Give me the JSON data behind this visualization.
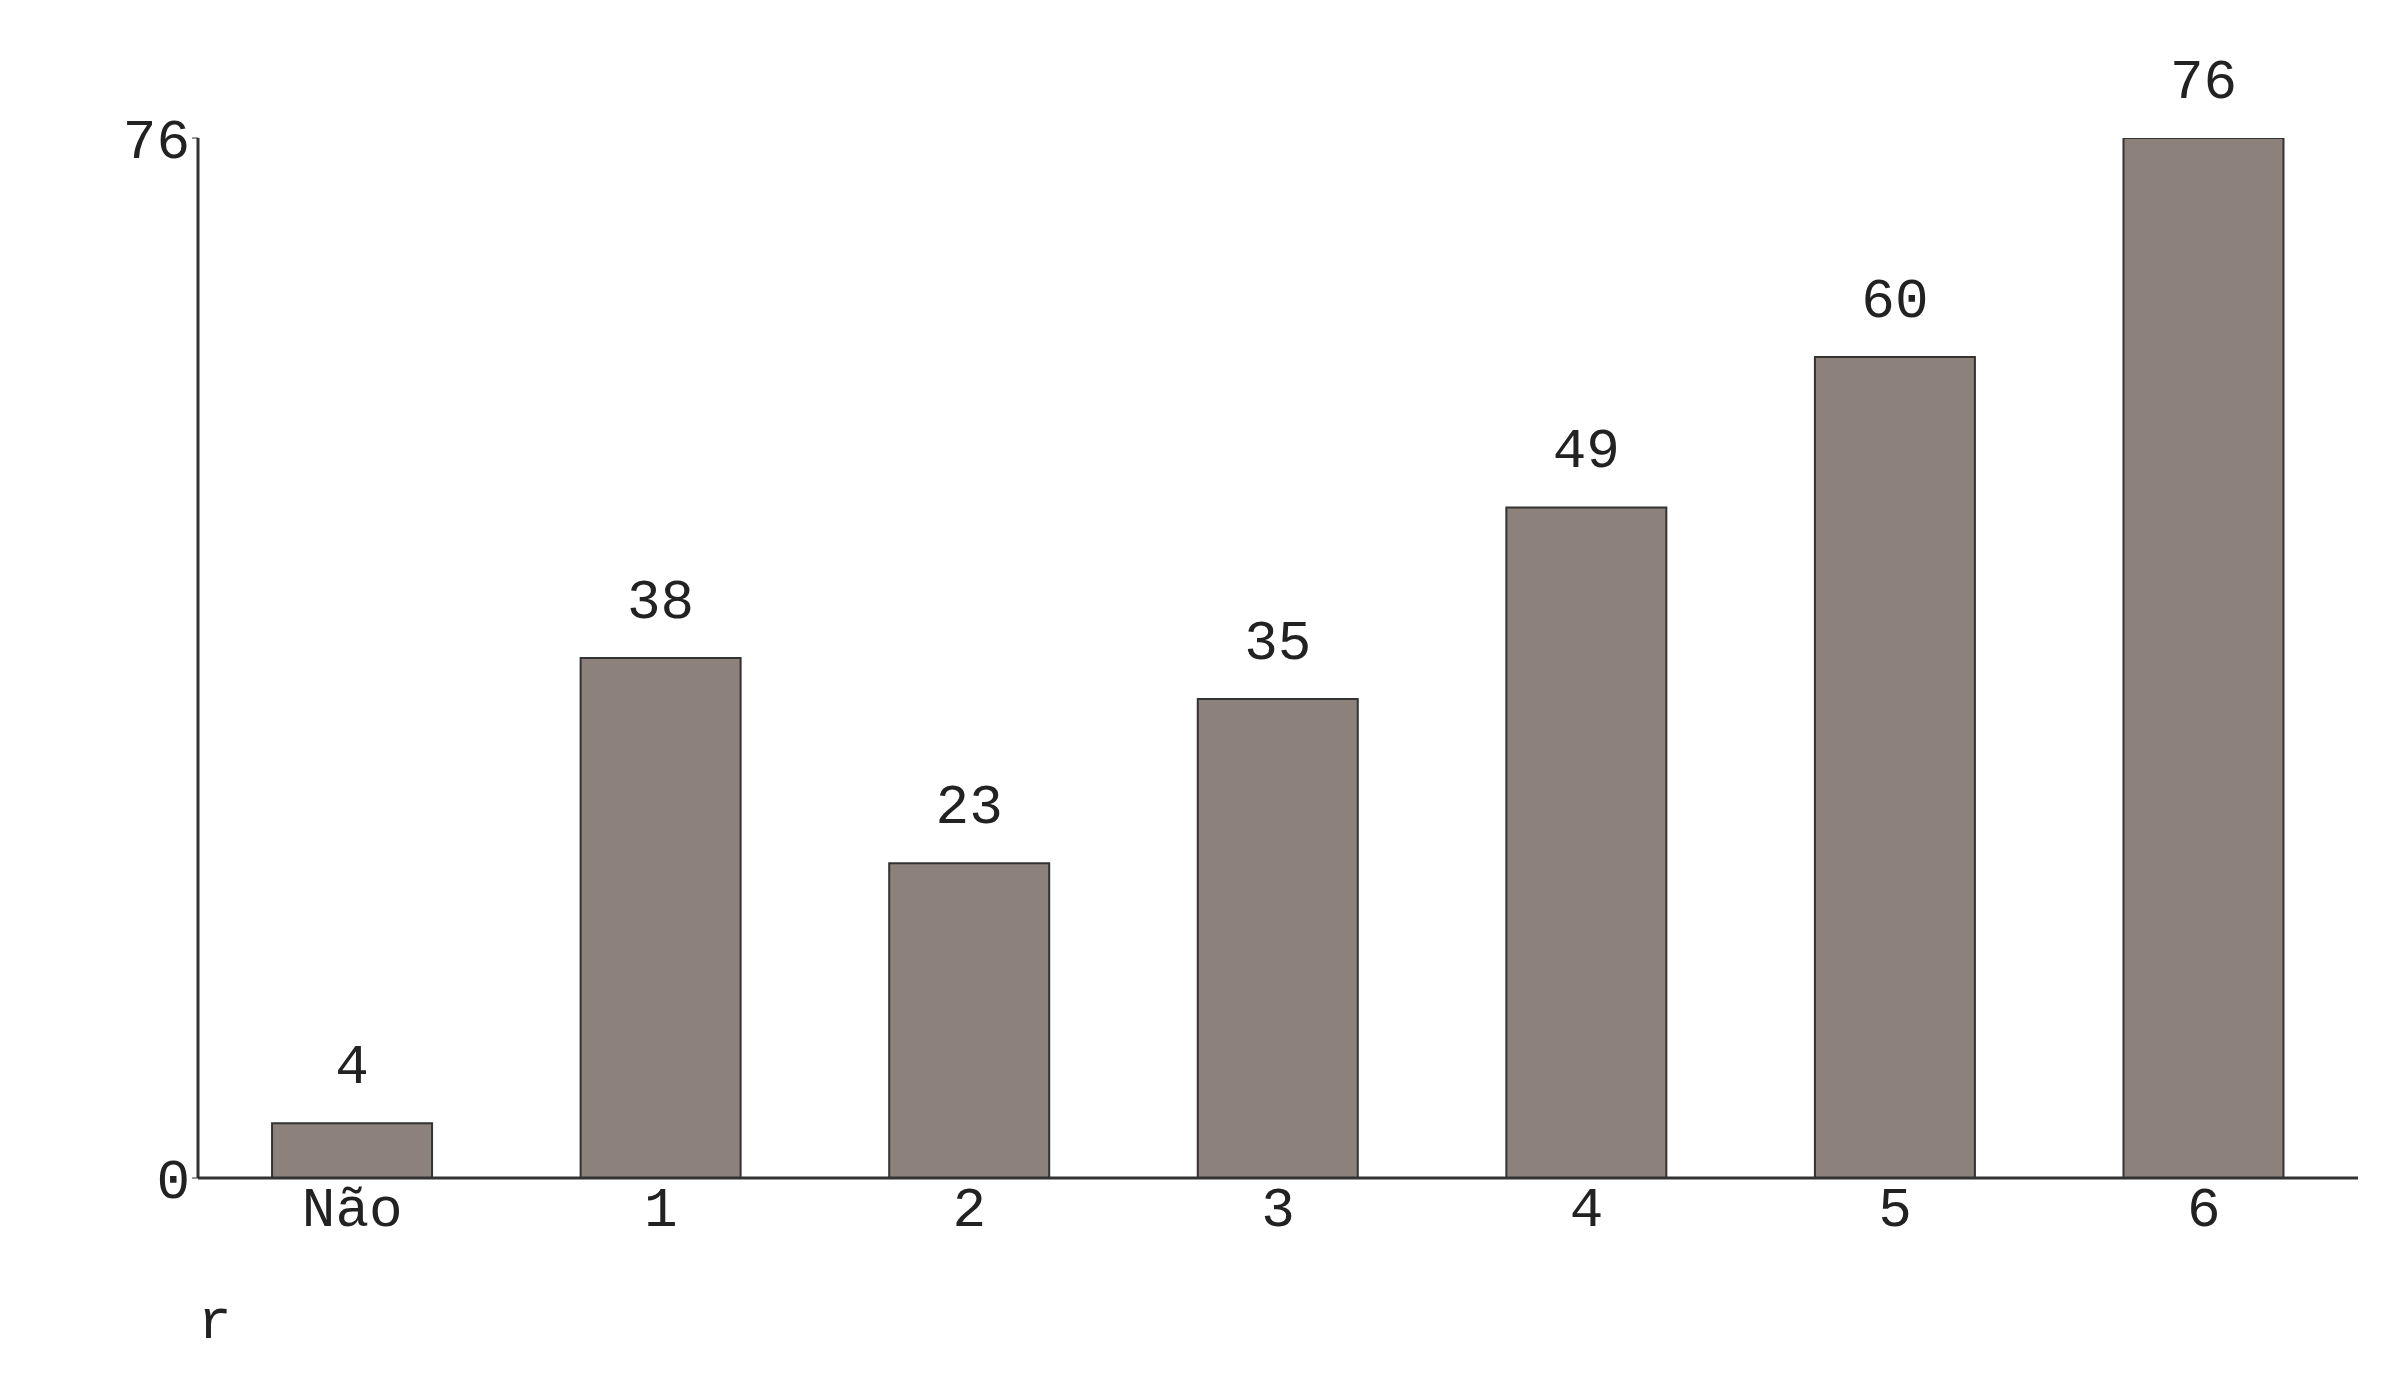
{
  "chart_data": {
    "type": "bar",
    "xlabel": "r",
    "categories": [
      "Não",
      "1",
      "2",
      "3",
      "4",
      "5",
      "6"
    ],
    "values": [
      4,
      38,
      23,
      35,
      49,
      60,
      76
    ],
    "color": "#8c817b",
    "ylim": [
      0,
      76
    ],
    "yticks": [
      0,
      76
    ],
    "grid": false,
    "data_labels": true,
    "legend": false
  }
}
